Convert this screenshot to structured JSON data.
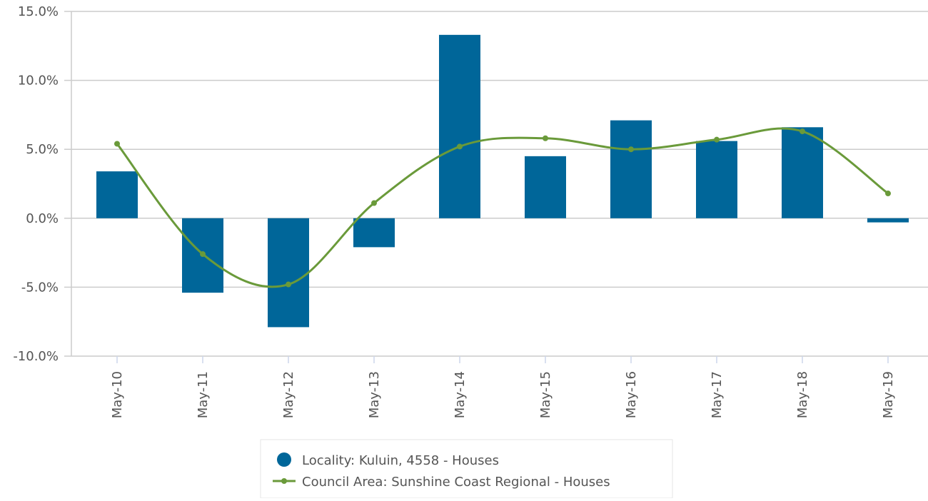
{
  "chart_data": {
    "type": "combo",
    "categories": [
      "May-10",
      "May-11",
      "May-12",
      "May-13",
      "May-14",
      "May-15",
      "May-16",
      "May-17",
      "May-18",
      "May-19"
    ],
    "series": [
      {
        "name": "Locality: Kuluin, 4558 - Houses",
        "type": "bar",
        "color": "#006699",
        "values": [
          3.4,
          -5.4,
          -7.9,
          -2.1,
          13.3,
          4.5,
          7.1,
          5.6,
          6.6,
          -0.3
        ]
      },
      {
        "name": "Council Area: Sunshine Coast Regional - Houses",
        "type": "line",
        "color": "#6a9a3a",
        "values": [
          5.4,
          -2.6,
          -4.8,
          1.1,
          5.2,
          5.8,
          5.0,
          5.7,
          6.3,
          1.8
        ]
      }
    ],
    "ylim": [
      -10,
      15
    ],
    "yticks": [
      {
        "value": -10,
        "label": "-10.0%"
      },
      {
        "value": -5,
        "label": "-5.0%"
      },
      {
        "value": 0,
        "label": "0.0%"
      },
      {
        "value": 5,
        "label": "5.0%"
      },
      {
        "value": 10,
        "label": "10.0%"
      },
      {
        "value": 15,
        "label": "15.0%"
      }
    ],
    "grid": true,
    "legend": "bottom"
  }
}
